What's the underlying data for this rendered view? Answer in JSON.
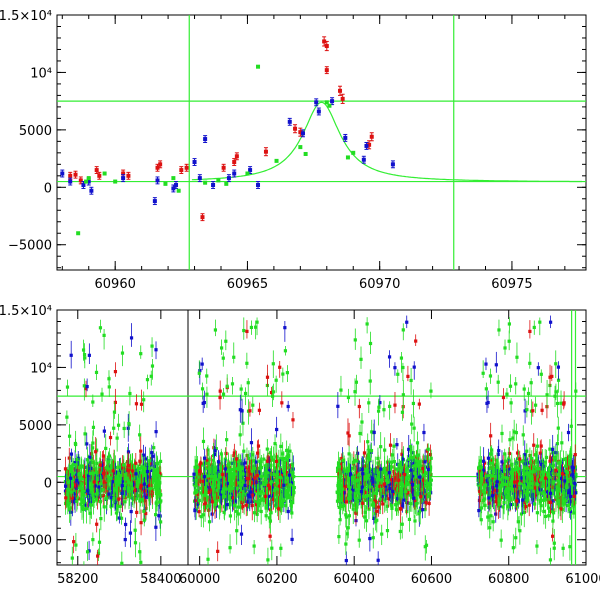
{
  "chart_data": [
    {
      "type": "scatter",
      "title": "",
      "xlabel": "",
      "ylabel": "",
      "xlim": [
        60957.8,
        60977.8
      ],
      "ylim": [
        -7200,
        15000
      ],
      "x_ticks": [
        {
          "value": 60960,
          "label": "60960"
        },
        {
          "value": 60965,
          "label": "60965"
        },
        {
          "value": 60970,
          "label": "60970"
        },
        {
          "value": 60975,
          "label": "60975"
        }
      ],
      "y_ticks": [
        {
          "value": 15000,
          "label": "1.5×10⁴"
        },
        {
          "value": 10000,
          "label": "10⁴"
        },
        {
          "value": 5000,
          "label": "5000"
        },
        {
          "value": 0,
          "label": "0"
        },
        {
          "value": -5000,
          "label": "−5000"
        }
      ],
      "reference_lines": {
        "horizontal": [
          7500,
          500
        ],
        "vertical": [
          60962.8,
          60972.8
        ],
        "color": "#33ee33"
      },
      "model_curve": {
        "baseline": 450,
        "peak": 7400,
        "center": 60967.8,
        "width": 0.95,
        "color": "#33ee33"
      },
      "series": [
        {
          "color": "#dd1111",
          "points": [
            [
              60958.3,
              1000,
              300
            ],
            [
              60958.5,
              1100,
              300
            ],
            [
              60958.7,
              600,
              300
            ],
            [
              60959.3,
              1500,
              300
            ],
            [
              60959.4,
              1000,
              300
            ],
            [
              60960.3,
              1200,
              300
            ],
            [
              60960.5,
              1000,
              300
            ],
            [
              60961.6,
              1700,
              300
            ],
            [
              60961.7,
              2000,
              300
            ],
            [
              60962.5,
              1500,
              300
            ],
            [
              60962.7,
              1700,
              300
            ],
            [
              60963.3,
              -2600,
              300
            ],
            [
              60964.1,
              1700,
              300
            ],
            [
              60964.5,
              2200,
              300
            ],
            [
              60964.6,
              2700,
              300
            ],
            [
              60965.7,
              3100,
              350
            ],
            [
              60966.8,
              5100,
              350
            ],
            [
              60967.0,
              4800,
              350
            ],
            [
              60967.9,
              12700,
              400
            ],
            [
              60968.0,
              12300,
              400
            ],
            [
              60968.0,
              10200,
              300
            ],
            [
              60968.5,
              8400,
              400
            ],
            [
              60968.6,
              7700,
              400
            ],
            [
              60969.6,
              3700,
              350
            ],
            [
              60969.7,
              4400,
              350
            ]
          ]
        },
        {
          "color": "#1111cc",
          "points": [
            [
              60958.0,
              1200,
              300
            ],
            [
              60958.3,
              500,
              300
            ],
            [
              60958.8,
              200,
              300
            ],
            [
              60959.0,
              500,
              300
            ],
            [
              60959.1,
              -300,
              300
            ],
            [
              60960.3,
              800,
              300
            ],
            [
              60961.5,
              -1200,
              300
            ],
            [
              60961.6,
              600,
              300
            ],
            [
              60962.2,
              -100,
              300
            ],
            [
              60962.3,
              200,
              300
            ],
            [
              60963.0,
              2200,
              300
            ],
            [
              60963.2,
              800,
              300
            ],
            [
              60963.4,
              4200,
              300
            ],
            [
              60963.7,
              200,
              300
            ],
            [
              60964.3,
              800,
              300
            ],
            [
              60964.5,
              1200,
              300
            ],
            [
              60965.1,
              1500,
              300
            ],
            [
              60965.4,
              200,
              300
            ],
            [
              60966.6,
              5700,
              300
            ],
            [
              60967.1,
              4700,
              300
            ],
            [
              60967.6,
              7400,
              300
            ],
            [
              60967.7,
              6600,
              300
            ],
            [
              60968.2,
              7500,
              300
            ],
            [
              60968.7,
              4300,
              300
            ],
            [
              60969.4,
              2400,
              300
            ],
            [
              60969.5,
              3600,
              300
            ],
            [
              60970.5,
              2000,
              300
            ]
          ]
        },
        {
          "color": "#22dd22",
          "points": [
            [
              60958.6,
              -4000,
              0
            ],
            [
              60958.9,
              500,
              0
            ],
            [
              60959.0,
              800,
              0
            ],
            [
              60959.6,
              1200,
              0
            ],
            [
              60960.0,
              500,
              0
            ],
            [
              60961.9,
              300,
              0
            ],
            [
              60962.2,
              800,
              0
            ],
            [
              60962.4,
              -300,
              0
            ],
            [
              60963.4,
              400,
              0
            ],
            [
              60963.9,
              600,
              0
            ],
            [
              60964.2,
              300,
              0
            ],
            [
              60965.0,
              1200,
              0
            ],
            [
              60965.4,
              10500,
              0
            ],
            [
              60966.1,
              2300,
              0
            ],
            [
              60967.0,
              3500,
              0
            ],
            [
              60967.2,
              2900,
              0
            ],
            [
              60968.0,
              7400,
              0
            ],
            [
              60968.1,
              7100,
              0
            ],
            [
              60968.8,
              2600,
              0
            ],
            [
              60969.0,
              3000,
              0
            ]
          ]
        }
      ]
    },
    {
      "type": "scatter",
      "title": "",
      "xlabel": "",
      "ylabel": "",
      "ylim": [
        -7200,
        15000
      ],
      "segments": [
        {
          "xlim": [
            58150,
            58410
          ],
          "x_ticks": [
            {
              "value": 58200,
              "label": "58200"
            },
            {
              "value": 58400,
              "label": "58400"
            }
          ]
        },
        {
          "xlim": [
            59975,
            60270
          ],
          "x_ticks": [
            {
              "value": 60000,
              "label": "60000"
            },
            {
              "value": 60200,
              "label": "60200"
            }
          ]
        },
        {
          "xlim": [
            60270,
            61000
          ],
          "x_ticks": [
            {
              "value": 60400,
              "label": "60400"
            },
            {
              "value": 60600,
              "label": "60600"
            },
            {
              "value": 60800,
              "label": "60800"
            },
            {
              "value": 61000,
              "label": "61000"
            }
          ]
        }
      ],
      "y_ticks": [
        {
          "value": 15000,
          "label": "1.5×10⁴"
        },
        {
          "value": 10000,
          "label": "10⁴"
        },
        {
          "value": 5000,
          "label": "5000"
        },
        {
          "value": 0,
          "label": "0"
        },
        {
          "value": -5000,
          "label": "−5000"
        }
      ],
      "reference_lines": {
        "horizontal": [
          7500,
          500
        ],
        "vertical": [
          60962.8,
          60972.8
        ],
        "color": "#33ee33"
      },
      "observing_seasons": [
        [
          58170,
          58400
        ],
        [
          59985,
          60245
        ],
        [
          60355,
          60600
        ],
        [
          60720,
          60975
        ]
      ],
      "series_colors": [
        "#22dd22",
        "#1111cc",
        "#dd1111"
      ],
      "notes": "Dense noisy photometry (thousands of points) centered near 0 with scatter roughly ±2500 and outliers up to ±15000 in each season."
    }
  ]
}
